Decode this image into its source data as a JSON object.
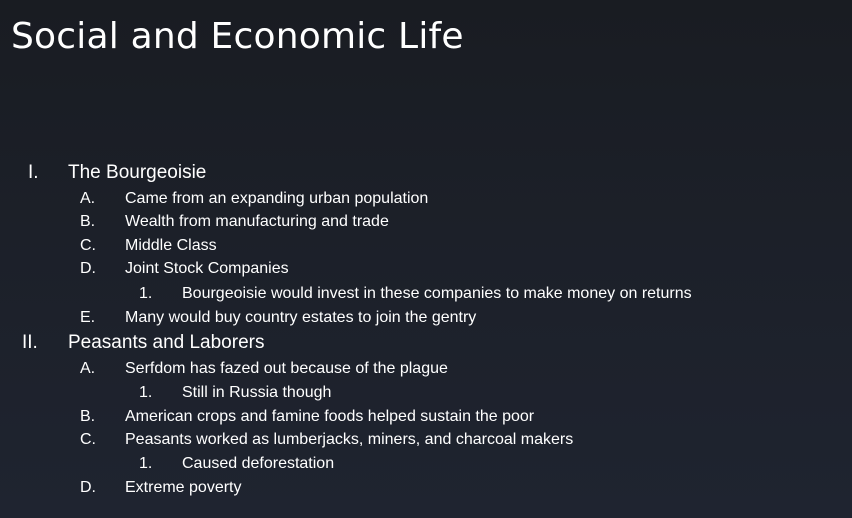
{
  "slide": {
    "title": "Social and Economic Life",
    "outline": [
      {
        "level": 1,
        "marker": "I.",
        "text": "The Bourgeoisie"
      },
      {
        "level": 2,
        "marker": "A.",
        "text": "Came from an expanding urban population"
      },
      {
        "level": 2,
        "marker": "B.",
        "text": "Wealth from manufacturing and trade"
      },
      {
        "level": 2,
        "marker": "C.",
        "text": "Middle Class"
      },
      {
        "level": 2,
        "marker": "D.",
        "text": "Joint Stock Companies"
      },
      {
        "level": 3,
        "marker": "1.",
        "text": "Bourgeoisie would invest in these companies to make money on returns"
      },
      {
        "level": 2,
        "marker": "E.",
        "text": "Many would buy country estates to join the gentry"
      },
      {
        "level": 1,
        "marker": "II.",
        "text": "Peasants and Laborers"
      },
      {
        "level": 2,
        "marker": "A.",
        "text": "Serfdom has fazed out because of the plague"
      },
      {
        "level": 3,
        "marker": "1.",
        "text": "Still in Russia though"
      },
      {
        "level": 2,
        "marker": "B.",
        "text": "American crops and famine foods helped sustain the poor"
      },
      {
        "level": 2,
        "marker": "C.",
        "text": "Peasants worked as lumberjacks, miners, and charcoal makers"
      },
      {
        "level": 3,
        "marker": "1.",
        "text": "Caused deforestation"
      },
      {
        "level": 2,
        "marker": "D.",
        "text": "Extreme poverty"
      }
    ]
  }
}
